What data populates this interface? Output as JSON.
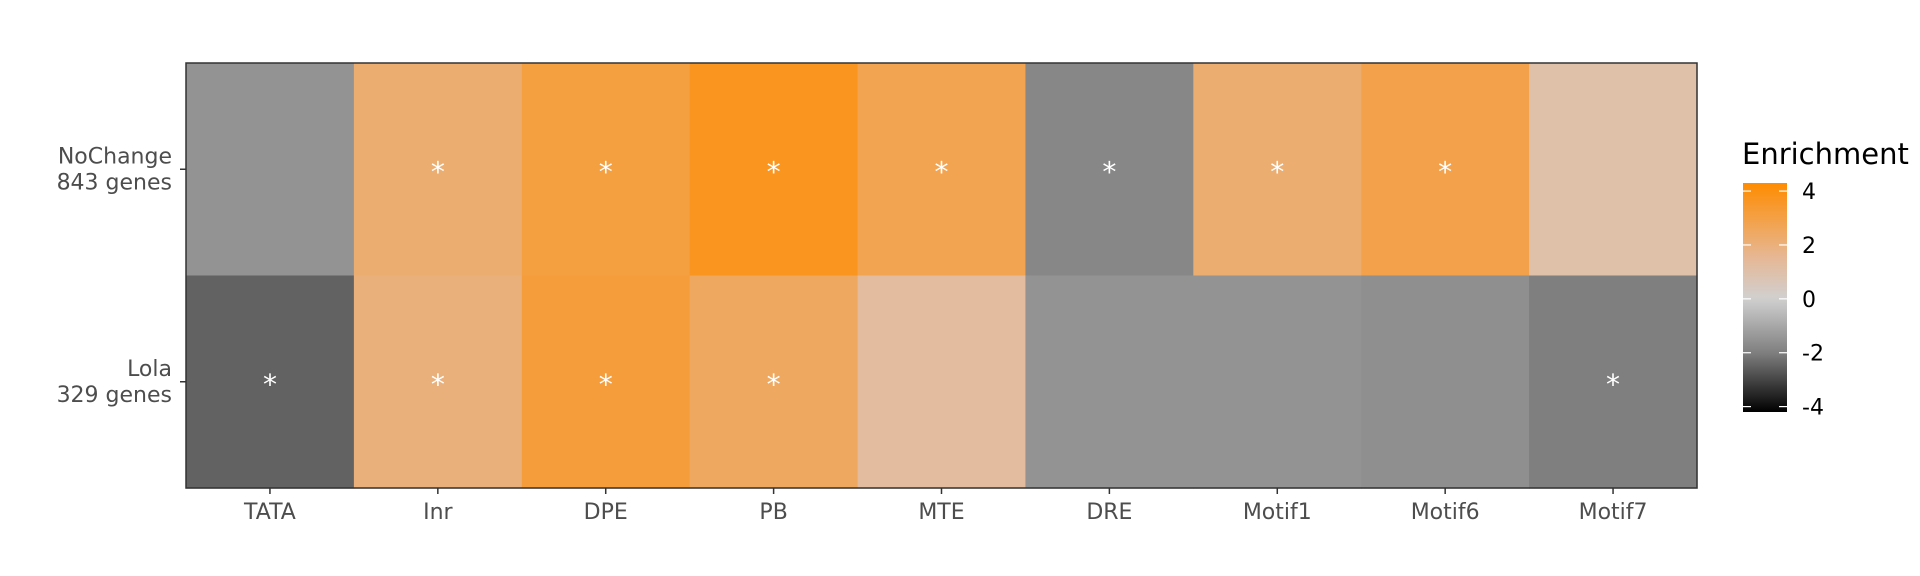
{
  "chart_data": {
    "type": "heatmap",
    "x_categories": [
      "TATA",
      "Inr",
      "DPE",
      "PB",
      "MTE",
      "DRE",
      "Motif1",
      "Motif6",
      "Motif7"
    ],
    "y_categories": [
      {
        "lines": [
          "NoChange",
          "843 genes"
        ]
      },
      {
        "lines": [
          "Lola",
          "329 genes"
        ]
      }
    ],
    "values": [
      [
        -1.5,
        2.2,
        3.1,
        3.7,
        2.8,
        -1.8,
        2.2,
        2.9,
        1.0
      ],
      [
        -2.5,
        2.0,
        3.2,
        2.5,
        1.3,
        -1.5,
        -1.5,
        -1.6,
        -2.0
      ]
    ],
    "significant": [
      [
        false,
        true,
        true,
        true,
        true,
        true,
        true,
        true,
        false
      ],
      [
        true,
        true,
        true,
        true,
        false,
        false,
        false,
        false,
        true
      ]
    ],
    "significance_marker": "*",
    "legend": {
      "title": "Enrichment",
      "ticks": [
        4,
        2,
        0,
        -2,
        -4
      ],
      "range": [
        -4.2,
        4.3
      ],
      "placement": "right"
    },
    "color_scale": {
      "low": "#000000",
      "mid_low": "#7f7f7f",
      "mid": "#d0d0d0",
      "mid_high": "#e6b896",
      "high": "#ff8c00"
    }
  }
}
